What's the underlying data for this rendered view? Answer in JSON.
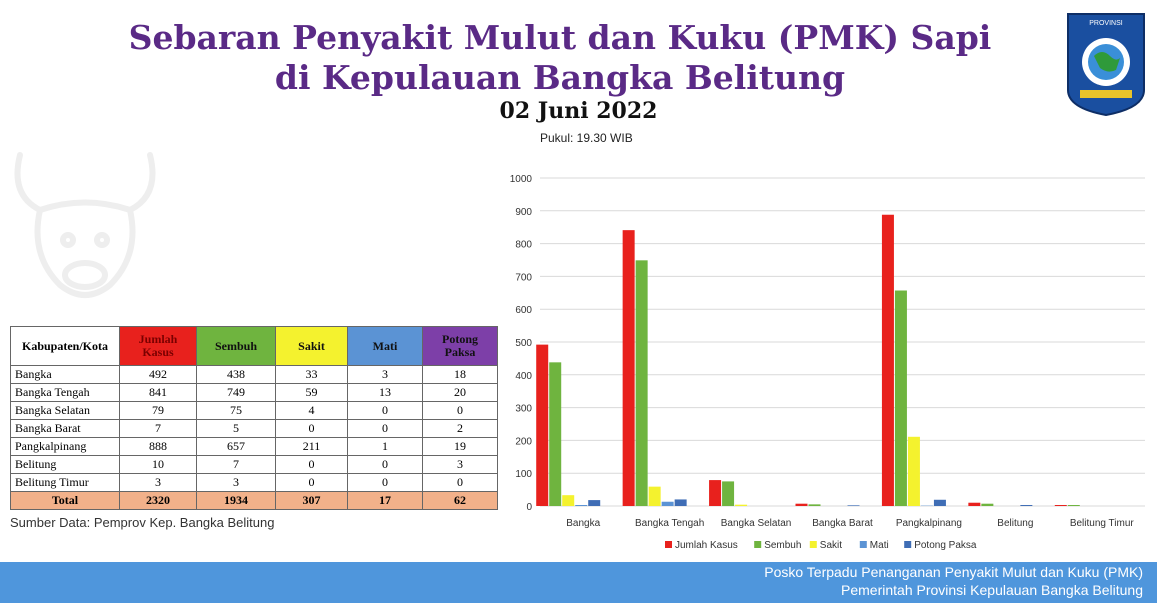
{
  "header": {
    "title_line1": "Sebaran Penyakit Mulut dan Kuku (PMK) Sapi",
    "title_line2": "di Kepulauan Bangka Belitung",
    "date": "02 Juni 2022",
    "time": "Pukul: 19.30 WIB",
    "logo_text": "PROVINSI"
  },
  "table": {
    "headers": [
      "Kabupaten/Kota",
      "Jumlah Kasus",
      "Sembuh",
      "Sakit",
      "Mati",
      "Potong Paksa"
    ],
    "rows": [
      [
        "Bangka",
        "492",
        "438",
        "33",
        "3",
        "18"
      ],
      [
        "Bangka Tengah",
        "841",
        "749",
        "59",
        "13",
        "20"
      ],
      [
        "Bangka Selatan",
        "79",
        "75",
        "4",
        "0",
        "0"
      ],
      [
        "Bangka Barat",
        "7",
        "5",
        "0",
        "0",
        "2"
      ],
      [
        "Pangkalpinang",
        "888",
        "657",
        "211",
        "1",
        "19"
      ],
      [
        "Belitung",
        "10",
        "7",
        "0",
        "0",
        "3"
      ],
      [
        "Belitung Timur",
        "3",
        "3",
        "0",
        "0",
        "0"
      ]
    ],
    "total": [
      "Total",
      "2320",
      "1934",
      "307",
      "17",
      "62"
    ]
  },
  "source": "Sumber Data: Pemprov Kep. Bangka Belitung",
  "footer": {
    "line1": "Posko Terpadu Penanganan Penyakit Mulut dan Kuku (PMK)",
    "line2": "Pemerintah Provinsi Kepulauan Bangka Belitung"
  },
  "chart_data": {
    "type": "bar",
    "categories": [
      "Bangka",
      "Bangka Tengah",
      "Bangka Selatan",
      "Bangka Barat",
      "Pangkalpinang",
      "Belitung",
      "Belitung Timur"
    ],
    "series": [
      {
        "name": "Jumlah Kasus",
        "color": "#e8211d",
        "values": [
          492,
          841,
          79,
          7,
          888,
          10,
          3
        ]
      },
      {
        "name": "Sembuh",
        "color": "#6fb43f",
        "values": [
          438,
          749,
          75,
          5,
          657,
          7,
          3
        ]
      },
      {
        "name": "Sakit",
        "color": "#f4f22e",
        "values": [
          33,
          59,
          4,
          0,
          211,
          0,
          0
        ]
      },
      {
        "name": "Mati",
        "color": "#5b93d4",
        "values": [
          3,
          13,
          0,
          0,
          1,
          0,
          0
        ]
      },
      {
        "name": "Potong Paksa",
        "color": "#3f6db5",
        "values": [
          18,
          20,
          0,
          2,
          19,
          3,
          0
        ]
      }
    ],
    "ylim": [
      0,
      1000
    ],
    "yticks": [
      0,
      100,
      200,
      300,
      400,
      500,
      600,
      700,
      800,
      900,
      1000
    ],
    "grid": true,
    "legend": "bottom"
  }
}
